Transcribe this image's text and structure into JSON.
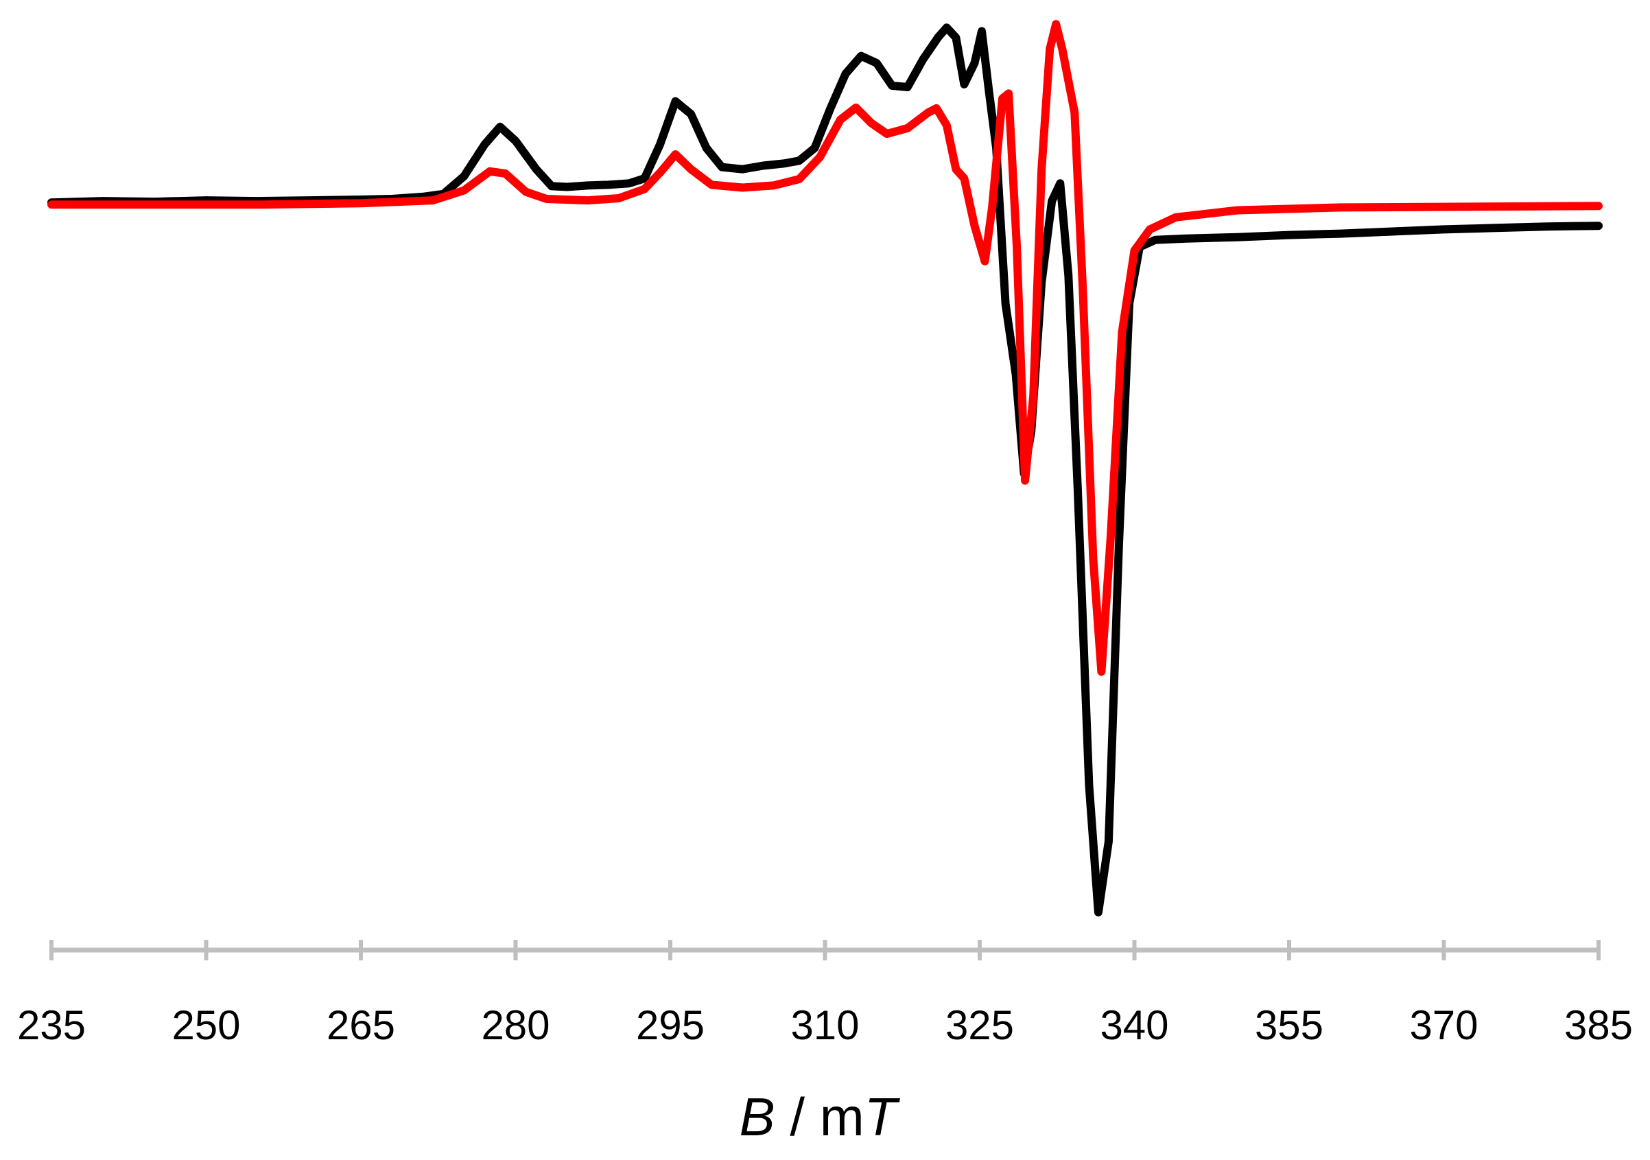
{
  "chart_data": {
    "type": "line",
    "xlabel": {
      "variable": "B",
      "separator": " / ",
      "unit_prefix": "m",
      "unit_symbol": "T"
    },
    "xlim": [
      235,
      385
    ],
    "xticks": [
      235,
      250,
      265,
      280,
      295,
      310,
      325,
      340,
      355,
      370,
      385
    ],
    "ylim": [
      -1.0,
      0.26
    ],
    "grid": false,
    "legend": "none",
    "axis_color": "#bfbfbf",
    "series": [
      {
        "color": "#000000",
        "points": [
          [
            235,
            0.003
          ],
          [
            240,
            0.005
          ],
          [
            245,
            0.004
          ],
          [
            250,
            0.006
          ],
          [
            255,
            0.005
          ],
          [
            260,
            0.006
          ],
          [
            265,
            0.007
          ],
          [
            268,
            0.008
          ],
          [
            271,
            0.011
          ],
          [
            273,
            0.015
          ],
          [
            275,
            0.04
          ],
          [
            277,
            0.085
          ],
          [
            278.5,
            0.11
          ],
          [
            280,
            0.09
          ],
          [
            282,
            0.05
          ],
          [
            283.5,
            0.026
          ],
          [
            285,
            0.025
          ],
          [
            287,
            0.027
          ],
          [
            289,
            0.028
          ],
          [
            291,
            0.03
          ],
          [
            292.5,
            0.037
          ],
          [
            294,
            0.085
          ],
          [
            295.5,
            0.146
          ],
          [
            297,
            0.128
          ],
          [
            298.5,
            0.08
          ],
          [
            300,
            0.053
          ],
          [
            302,
            0.05
          ],
          [
            304,
            0.055
          ],
          [
            306,
            0.058
          ],
          [
            307.5,
            0.062
          ],
          [
            309,
            0.08
          ],
          [
            310.5,
            0.135
          ],
          [
            312,
            0.185
          ],
          [
            313.5,
            0.21
          ],
          [
            315,
            0.2
          ],
          [
            316.5,
            0.168
          ],
          [
            318,
            0.166
          ],
          [
            319.5,
            0.205
          ],
          [
            321,
            0.237
          ],
          [
            321.8,
            0.25
          ],
          [
            322.7,
            0.236
          ],
          [
            323.5,
            0.17
          ],
          [
            324.5,
            0.2
          ],
          [
            325.2,
            0.245
          ],
          [
            325.9,
            0.16
          ],
          [
            326.6,
            0.08
          ],
          [
            327.5,
            -0.14
          ],
          [
            328.5,
            -0.24
          ],
          [
            329.3,
            -0.38
          ],
          [
            330,
            -0.32
          ],
          [
            331,
            -0.11
          ],
          [
            332,
            0.005
          ],
          [
            332.8,
            0.03
          ],
          [
            333.6,
            -0.1
          ],
          [
            334.5,
            -0.4
          ],
          [
            335.6,
            -0.82
          ],
          [
            336.5,
            -1.0
          ],
          [
            337.5,
            -0.9
          ],
          [
            338.5,
            -0.48
          ],
          [
            339.5,
            -0.14
          ],
          [
            340.5,
            -0.06
          ],
          [
            342,
            -0.05
          ],
          [
            345,
            -0.048
          ],
          [
            350,
            -0.046
          ],
          [
            355,
            -0.043
          ],
          [
            360,
            -0.041
          ],
          [
            365,
            -0.038
          ],
          [
            370,
            -0.035
          ],
          [
            375,
            -0.033
          ],
          [
            380,
            -0.031
          ],
          [
            385,
            -0.03
          ]
        ]
      },
      {
        "color": "#ff0000",
        "points": [
          [
            235,
            0.0
          ],
          [
            255,
            0.0
          ],
          [
            265,
            0.002
          ],
          [
            272,
            0.006
          ],
          [
            275,
            0.02
          ],
          [
            277.5,
            0.047
          ],
          [
            279,
            0.044
          ],
          [
            281,
            0.018
          ],
          [
            283,
            0.008
          ],
          [
            287,
            0.006
          ],
          [
            290,
            0.009
          ],
          [
            292.5,
            0.022
          ],
          [
            294,
            0.045
          ],
          [
            295.5,
            0.071
          ],
          [
            297,
            0.05
          ],
          [
            299,
            0.028
          ],
          [
            302,
            0.024
          ],
          [
            305,
            0.027
          ],
          [
            307.5,
            0.036
          ],
          [
            309.5,
            0.067
          ],
          [
            311.5,
            0.12
          ],
          [
            313,
            0.137
          ],
          [
            314.5,
            0.115
          ],
          [
            316,
            0.1
          ],
          [
            318,
            0.108
          ],
          [
            320,
            0.13
          ],
          [
            320.8,
            0.136
          ],
          [
            321.8,
            0.112
          ],
          [
            322.7,
            0.05
          ],
          [
            323.5,
            0.037
          ],
          [
            324.5,
            -0.03
          ],
          [
            325.5,
            -0.08
          ],
          [
            326.2,
            -0.005
          ],
          [
            327.2,
            0.15
          ],
          [
            327.8,
            0.157
          ],
          [
            328.6,
            -0.06
          ],
          [
            329.4,
            -0.39
          ],
          [
            330.2,
            -0.27
          ],
          [
            331,
            0.05
          ],
          [
            331.8,
            0.22
          ],
          [
            332.4,
            0.255
          ],
          [
            333,
            0.22
          ],
          [
            334.2,
            0.13
          ],
          [
            335,
            -0.12
          ],
          [
            336,
            -0.5
          ],
          [
            336.8,
            -0.66
          ],
          [
            337.7,
            -0.47
          ],
          [
            338.8,
            -0.18
          ],
          [
            340,
            -0.065
          ],
          [
            341.5,
            -0.035
          ],
          [
            344,
            -0.018
          ],
          [
            350,
            -0.008
          ],
          [
            360,
            -0.004
          ],
          [
            385,
            -0.002
          ]
        ]
      }
    ]
  }
}
